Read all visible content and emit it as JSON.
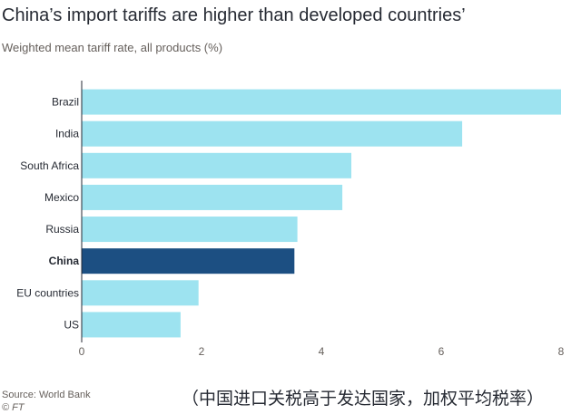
{
  "title": "China’s import tariffs are higher than developed countries’",
  "subtitle": "Weighted mean tariff rate, all products (%)",
  "source": "Source: World Bank",
  "copyright": "© FT",
  "caption": "（中国进口关税高于发达国家，加权平均税率）",
  "colors": {
    "bar": "#9de3f0",
    "highlight": "#1c4f82",
    "background": "#ffffff",
    "axis": "#262a33",
    "text": "#66605c"
  },
  "chart_data": {
    "type": "bar",
    "orientation": "horizontal",
    "categories": [
      "Brazil",
      "India",
      "South Africa",
      "Mexico",
      "Russia",
      "China",
      "EU countries",
      "US"
    ],
    "values": [
      8.0,
      6.35,
      4.5,
      4.35,
      3.6,
      3.55,
      1.95,
      1.65
    ],
    "highlight": "China",
    "xlim": [
      0,
      8
    ],
    "xticks": [
      0,
      2,
      4,
      6,
      8
    ],
    "xlabel": "",
    "ylabel": "",
    "grid": false,
    "legend": "none"
  }
}
